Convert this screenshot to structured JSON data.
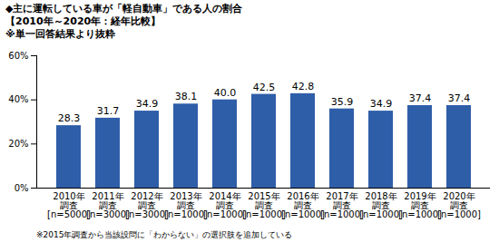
{
  "chart_data": {
    "type": "bar",
    "title": "◆主に運転している車が「軽自動車」である人の割合",
    "subtitle": "【2010年～2020年：経年比較】",
    "annotations": [
      "※単一回答結果より抜粋",
      "※2015年調査から当該設問に「わからない」の選択肢を追加している"
    ],
    "categories": [
      "2010年\n調査\n[n=5000]",
      "2011年\n調査\n[n=3000]",
      "2012年\n調査\n[n=3000]",
      "2013年\n調査\n[n=1000]",
      "2014年\n調査\n[n=1000]",
      "2015年\n調査\n[n=1000]",
      "2016年\n調査\n[n=1000]",
      "2017年\n調査\n[n=1000]",
      "2018年\n調査\n[n=1000]",
      "2019年\n調査\n[n=1000]",
      "2020年\n調査\n[n=1000]"
    ],
    "values": [
      28.3,
      31.7,
      34.9,
      38.1,
      40.0,
      42.5,
      42.8,
      35.9,
      34.9,
      37.4,
      37.4
    ],
    "value_labels": [
      "28.3",
      "31.7",
      "34.9",
      "38.1",
      "40.0",
      "42.5",
      "42.8",
      "35.9",
      "34.9",
      "37.4",
      "37.4"
    ],
    "color": "#2f5ea8",
    "ylim": [
      0,
      60
    ],
    "yticks": [
      {
        "value": 0,
        "label": "0%"
      },
      {
        "value": 20,
        "label": "20%"
      },
      {
        "value": 40,
        "label": "40%"
      },
      {
        "value": 60,
        "label": "60%"
      }
    ],
    "grid": false,
    "data_labels": true
  }
}
